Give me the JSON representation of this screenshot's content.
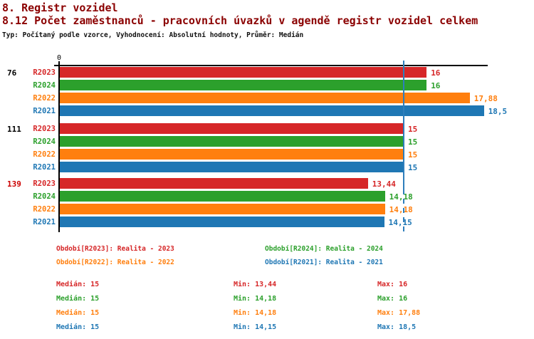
{
  "page": {
    "title": "8. Registr vozidel",
    "subtitle": "8.12 Počet zaměstnanců - pracovních úvazků v agendě registr vozidel celkem",
    "meta": "Typ: Počítaný podle vzorce, Vyhodnocení: Absolutní hodnoty, Průměr: Medián",
    "title_color": "#8b0000"
  },
  "colors": {
    "R2023": "#d62728",
    "R2024": "#2ca02c",
    "R2022": "#ff7f0e",
    "R2021": "#1f77b4",
    "median_line": "#2e7ebc",
    "axis": "#000000",
    "group_label_default": "#000000",
    "group_label_highlight": "#cc0000"
  },
  "chart_data": {
    "type": "bar",
    "orientation": "horizontal",
    "value_axis": {
      "min": 0,
      "max": 18.7,
      "zero_label": "0",
      "grid": false
    },
    "median_line_value": 15,
    "series_order": [
      "R2023",
      "R2024",
      "R2022",
      "R2021"
    ],
    "groups": [
      {
        "label": "76",
        "label_color": "#000000",
        "bars": [
          {
            "series": "R2023",
            "value": 16,
            "display": "16"
          },
          {
            "series": "R2024",
            "value": 16,
            "display": "16"
          },
          {
            "series": "R2022",
            "value": 17.88,
            "display": "17,88"
          },
          {
            "series": "R2021",
            "value": 18.5,
            "display": "18,5"
          }
        ]
      },
      {
        "label": "111",
        "label_color": "#000000",
        "bars": [
          {
            "series": "R2023",
            "value": 15,
            "display": "15"
          },
          {
            "series": "R2024",
            "value": 15,
            "display": "15"
          },
          {
            "series": "R2022",
            "value": 15,
            "display": "15"
          },
          {
            "series": "R2021",
            "value": 15,
            "display": "15"
          }
        ]
      },
      {
        "label": "139",
        "label_color": "#cc0000",
        "bars": [
          {
            "series": "R2023",
            "value": 13.44,
            "display": "13,44"
          },
          {
            "series": "R2024",
            "value": 14.18,
            "display": "14,18"
          },
          {
            "series": "R2022",
            "value": 14.18,
            "display": "14,18"
          },
          {
            "series": "R2021",
            "value": 14.15,
            "display": "14,15"
          }
        ]
      }
    ]
  },
  "legend": [
    {
      "text": "Období[R2023]: Realita - 2023",
      "series": "R2023",
      "color": "#d62728"
    },
    {
      "text": "Období[R2024]: Realita - 2024",
      "series": "R2024",
      "color": "#2ca02c"
    },
    {
      "text": "Období[R2022]: Realita - 2022",
      "series": "R2022",
      "color": "#ff7f0e"
    },
    {
      "text": "Období[R2021]: Realita - 2021",
      "series": "R2021",
      "color": "#1f77b4"
    }
  ],
  "stats": [
    {
      "series": "R2023",
      "color": "#d62728",
      "median": "Medián: 15",
      "min": "Min: 13,44",
      "max": "Max: 16"
    },
    {
      "series": "R2024",
      "color": "#2ca02c",
      "median": "Medián: 15",
      "min": "Min: 14,18",
      "max": "Max: 16"
    },
    {
      "series": "R2022",
      "color": "#ff7f0e",
      "median": "Medián: 15",
      "min": "Min: 14,18",
      "max": "Max: 17,88"
    },
    {
      "series": "R2021",
      "color": "#1f77b4",
      "median": "Medián: 15",
      "min": "Min: 14,15",
      "max": "Max: 18,5"
    }
  ]
}
